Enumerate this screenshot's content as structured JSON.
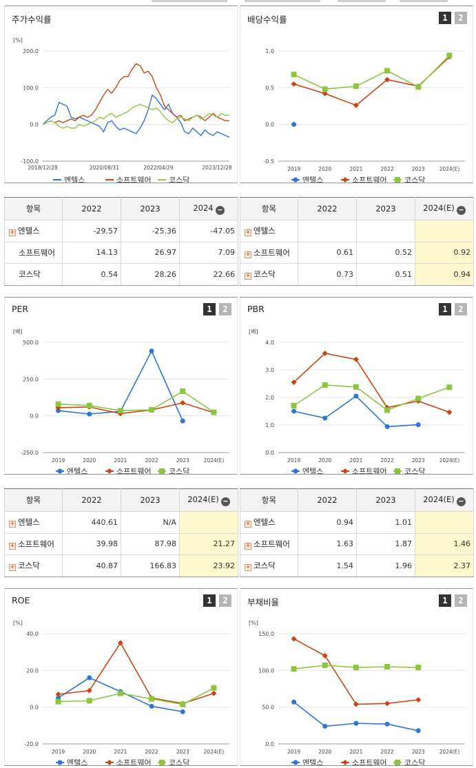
{
  "legend": [
    "엔텔스",
    "소프트웨어",
    "코스닥"
  ],
  "colors": {
    "s0": "#2c74d5",
    "s1": "#c9440f",
    "s2": "#8cc63f"
  },
  "panels": {
    "p1": {
      "title": "주가수익률"
    },
    "p2": {
      "title": "배당수익률",
      "btn1": "1",
      "btn2": "2"
    },
    "p3": {
      "title": "PER",
      "btn1": "1",
      "btn2": "2"
    },
    "p4": {
      "title": "PBR",
      "btn1": "1",
      "btn2": "2"
    },
    "p5": {
      "title": "ROE",
      "btn1": "1",
      "btn2": "2"
    },
    "p6": {
      "title": "부채비율",
      "btn1": "1",
      "btn2": "2"
    }
  },
  "chart_data": [
    {
      "id": "c1",
      "type": "line",
      "title": "주가수익률",
      "unit": "[%]",
      "ylim": [
        -100,
        200
      ],
      "yticks": [
        "200.0",
        "100.0",
        "0.0",
        "-100.0"
      ],
      "ytick_values": [
        200,
        100,
        0,
        -100
      ],
      "xticks": [
        "2018/12/28",
        "2020/08/31",
        "2022/04/29",
        "2023/12/28"
      ],
      "series": [
        {
          "name": "엔텔스",
          "values": [
            0,
            10,
            20,
            25,
            60,
            55,
            50,
            20,
            15,
            20,
            15,
            10,
            5,
            0,
            -5,
            -20,
            5,
            10,
            -5,
            -15,
            -10,
            -15,
            -20,
            -25,
            -10,
            10,
            40,
            80,
            70,
            55,
            40,
            55,
            30,
            20,
            5,
            -20,
            -25,
            -10,
            -20,
            -30,
            -15,
            -25,
            -30,
            -20,
            -25,
            -30,
            -35
          ]
        },
        {
          "name": "소프트웨어",
          "values": [
            0,
            5,
            10,
            5,
            10,
            5,
            10,
            15,
            10,
            20,
            25,
            20,
            25,
            40,
            60,
            80,
            95,
            85,
            100,
            120,
            130,
            130,
            150,
            165,
            160,
            140,
            145,
            130,
            100,
            80,
            50,
            40,
            30,
            20,
            25,
            10,
            15,
            20,
            25,
            20,
            10,
            20,
            30,
            20,
            15,
            10,
            10
          ]
        },
        {
          "name": "코스닥",
          "values": [
            0,
            5,
            10,
            5,
            -5,
            -10,
            -5,
            -10,
            -10,
            0,
            -5,
            0,
            5,
            10,
            20,
            15,
            25,
            30,
            20,
            25,
            30,
            35,
            45,
            50,
            55,
            50,
            45,
            40,
            45,
            35,
            20,
            10,
            5,
            15,
            20,
            15,
            10,
            20,
            25,
            15,
            20,
            30,
            25,
            20,
            30,
            25,
            25
          ]
        }
      ]
    },
    {
      "id": "c2",
      "type": "line",
      "title": "배당수익률",
      "ylim": [
        -0.5,
        1.0
      ],
      "yticks": [
        "1.0",
        "0.5",
        "0.0",
        "-0.5"
      ],
      "ytick_values": [
        1.0,
        0.5,
        0.0,
        -0.5
      ],
      "categories": [
        "2019",
        "2020",
        "2021",
        "2022",
        "2023",
        "2024(E)"
      ],
      "series": [
        {
          "name": "엔텔스",
          "values": [
            0.0,
            null,
            null,
            null,
            null,
            null
          ]
        },
        {
          "name": "소프트웨어",
          "values": [
            0.55,
            0.42,
            0.26,
            0.61,
            0.52,
            0.92
          ]
        },
        {
          "name": "코스닥",
          "values": [
            0.68,
            0.48,
            0.52,
            0.73,
            0.51,
            0.94
          ]
        }
      ]
    },
    {
      "id": "c3",
      "type": "line",
      "title": "PER",
      "unit": "[배]",
      "ylim": [
        -250,
        500
      ],
      "yticks": [
        "500.0",
        "250.0",
        "0.0",
        "-250.0"
      ],
      "ytick_values": [
        500,
        250,
        0,
        -250
      ],
      "categories": [
        "2019",
        "2020",
        "2021",
        "2022",
        "2023",
        "2024(E)"
      ],
      "series": [
        {
          "name": "엔텔스",
          "values": [
            35,
            12,
            30,
            440.61,
            -35,
            null
          ]
        },
        {
          "name": "소프트웨어",
          "values": [
            55,
            60,
            15,
            39.98,
            87.98,
            21.27
          ]
        },
        {
          "name": "코스닥",
          "values": [
            80,
            70,
            35,
            40.87,
            166.83,
            23.92
          ]
        }
      ]
    },
    {
      "id": "c4",
      "type": "line",
      "title": "PBR",
      "unit": "[배]",
      "ylim": [
        0,
        4
      ],
      "yticks": [
        "4.0",
        "3.0",
        "2.0",
        "1.0",
        "0.0"
      ],
      "ytick_values": [
        4,
        3,
        2,
        1,
        0
      ],
      "categories": [
        "2019",
        "2020",
        "2021",
        "2022",
        "2023",
        "2024(E)"
      ],
      "series": [
        {
          "name": "엔텔스",
          "values": [
            1.5,
            1.25,
            2.05,
            0.94,
            1.01,
            null
          ]
        },
        {
          "name": "소프트웨어",
          "values": [
            2.55,
            3.6,
            3.38,
            1.63,
            1.87,
            1.46
          ]
        },
        {
          "name": "코스닥",
          "values": [
            1.7,
            2.45,
            2.38,
            1.54,
            1.96,
            2.37
          ]
        }
      ]
    },
    {
      "id": "c5",
      "type": "line",
      "title": "ROE",
      "unit": "[%]",
      "ylim": [
        -20,
        40
      ],
      "yticks": [
        "40.0",
        "20.0",
        "0.0",
        "-20.0"
      ],
      "ytick_values": [
        40,
        20,
        0,
        -20
      ],
      "categories": [
        "2019",
        "2020",
        "2021",
        "2022",
        "2023",
        "2024(E)"
      ],
      "series": [
        {
          "name": "엔텔스",
          "values": [
            5,
            16,
            8.5,
            0.5,
            -2.5,
            null
          ]
        },
        {
          "name": "소프트웨어",
          "values": [
            7,
            9,
            35,
            5,
            2,
            7.5
          ]
        },
        {
          "name": "코스닥",
          "values": [
            3,
            3.5,
            7.5,
            4.5,
            1.5,
            10.5
          ]
        }
      ]
    },
    {
      "id": "c6",
      "type": "line",
      "title": "부채비율",
      "unit": "[%]",
      "ylim": [
        0,
        150
      ],
      "yticks": [
        "150.0",
        "100.0",
        "50.0",
        "0.0"
      ],
      "ytick_values": [
        150,
        100,
        50,
        0
      ],
      "categories": [
        "2019",
        "2020",
        "2021",
        "2022",
        "2023",
        "2024(E)"
      ],
      "series": [
        {
          "name": "엔텔스",
          "values": [
            57,
            24,
            28,
            27,
            18,
            null
          ]
        },
        {
          "name": "소프트웨어",
          "values": [
            143,
            120,
            54,
            55,
            60,
            null
          ]
        },
        {
          "name": "코스닥",
          "values": [
            102,
            107,
            104,
            105,
            104,
            null
          ]
        }
      ]
    }
  ],
  "tables": {
    "t1": {
      "head": [
        "항목",
        "2022",
        "2023",
        "2024"
      ],
      "rows": [
        {
          "label": "엔텔스",
          "plus": true,
          "cells": [
            "-29.57",
            "-25.36",
            "-47.05"
          ]
        },
        {
          "label": "소프트웨어",
          "plus": false,
          "cells": [
            "14.13",
            "26.97",
            "7.09"
          ]
        },
        {
          "label": "코스닥",
          "plus": false,
          "cells": [
            "0.54",
            "28.26",
            "22.66"
          ]
        }
      ]
    },
    "t2": {
      "head": [
        "항목",
        "2022",
        "2023",
        "2024(E)"
      ],
      "rows": [
        {
          "label": "엔텔스",
          "plus": true,
          "cells": [
            "",
            "",
            ""
          ]
        },
        {
          "label": "소프트웨어",
          "plus": true,
          "cells": [
            "0.61",
            "0.52",
            "0.92"
          ]
        },
        {
          "label": "코스닥",
          "plus": true,
          "cells": [
            "0.73",
            "0.51",
            "0.94"
          ]
        }
      ]
    },
    "t3": {
      "head": [
        "항목",
        "2022",
        "2023",
        "2024(E)"
      ],
      "rows": [
        {
          "label": "엔텔스",
          "plus": true,
          "cells": [
            "440.61",
            "N/A",
            ""
          ]
        },
        {
          "label": "소프트웨어",
          "plus": true,
          "cells": [
            "39.98",
            "87.98",
            "21.27"
          ]
        },
        {
          "label": "코스닥",
          "plus": true,
          "cells": [
            "40.87",
            "166.83",
            "23.92"
          ]
        }
      ]
    },
    "t4": {
      "head": [
        "항목",
        "2022",
        "2023",
        "2024(E)"
      ],
      "rows": [
        {
          "label": "엔텔스",
          "plus": true,
          "cells": [
            "0.94",
            "1.01",
            ""
          ]
        },
        {
          "label": "소프트웨어",
          "plus": true,
          "cells": [
            "1.63",
            "1.87",
            "1.46"
          ]
        },
        {
          "label": "코스닥",
          "plus": true,
          "cells": [
            "1.54",
            "1.96",
            "2.37"
          ]
        }
      ]
    }
  }
}
